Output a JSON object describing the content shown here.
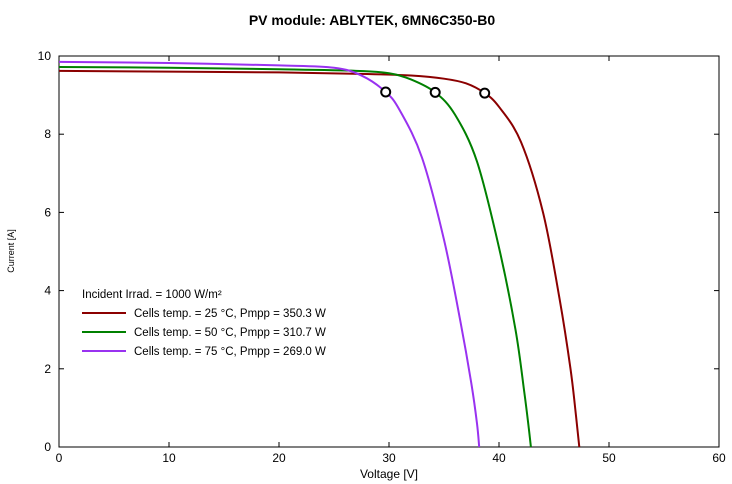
{
  "chart_data": {
    "type": "line",
    "title": "PV module:  ABLYTEK,  6MN6C350-B0",
    "xlabel": "Voltage [V]",
    "ylabel": "Current [A]",
    "xlim": [
      0,
      60
    ],
    "ylim": [
      0,
      10
    ],
    "xticks": [
      0,
      10,
      20,
      30,
      40,
      50,
      60
    ],
    "yticks": [
      0,
      2,
      4,
      6,
      8,
      10
    ],
    "grid": false,
    "legend_position": "lower-left",
    "legend_header": "Incident Irrad. = 1000 W/m²",
    "series": [
      {
        "name": "Cells temp. = 25 °C,  Pmpp = 350.3 W",
        "color": "#8b0000",
        "x": [
          0,
          10,
          20,
          28,
          32,
          35,
          37,
          38.7,
          40,
          42,
          44,
          45.5,
          46.5,
          47,
          47.3
        ],
        "y": [
          9.62,
          9.6,
          9.58,
          9.54,
          9.5,
          9.42,
          9.3,
          9.05,
          8.7,
          7.8,
          6.0,
          3.8,
          2.0,
          0.8,
          0
        ],
        "mpp": [
          38.7,
          9.05
        ]
      },
      {
        "name": "Cells temp. = 50 °C,  Pmpp = 310.7 W",
        "color": "#008000",
        "x": [
          0,
          10,
          20,
          27,
          30,
          32,
          34.2,
          36,
          38,
          40,
          41.5,
          42.3,
          42.7,
          42.9
        ],
        "y": [
          9.72,
          9.7,
          9.66,
          9.62,
          9.56,
          9.4,
          9.07,
          8.5,
          7.3,
          5.1,
          3.0,
          1.4,
          0.5,
          0
        ],
        "mpp": [
          34.2,
          9.07
        ]
      },
      {
        "name": "Cells temp. = 75 °C,  Pmpp = 269.0 W",
        "color": "#9932f0",
        "x": [
          0,
          10,
          20,
          25,
          27.5,
          29.7,
          31,
          33,
          35,
          36.5,
          37.5,
          38,
          38.2
        ],
        "y": [
          9.85,
          9.82,
          9.76,
          9.7,
          9.5,
          9.08,
          8.6,
          7.4,
          5.3,
          3.2,
          1.6,
          0.6,
          0
        ],
        "mpp": [
          29.7,
          9.08
        ]
      }
    ]
  }
}
